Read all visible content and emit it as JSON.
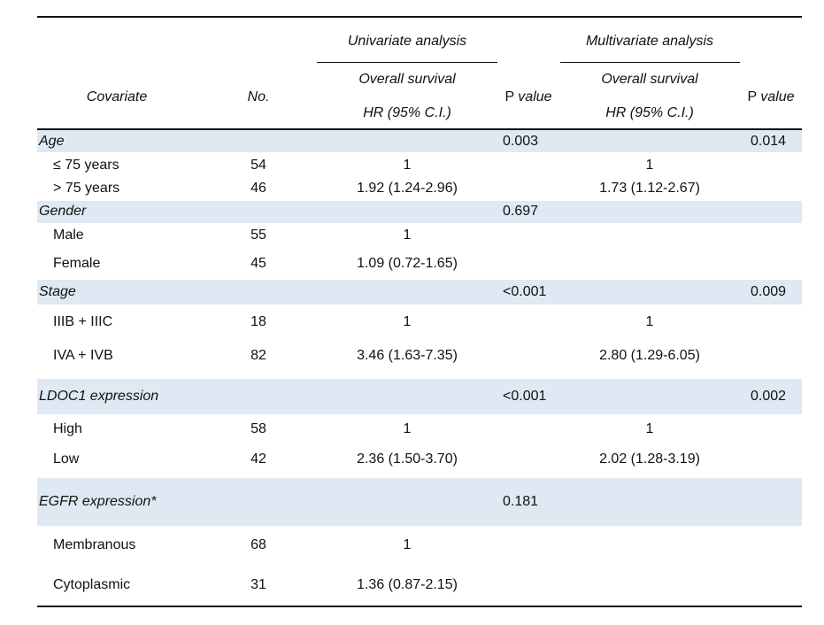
{
  "header": {
    "group_univariate": "Univariate analysis",
    "group_multivariate": "Multivariate analysis",
    "covariate": "Covariate",
    "no": "No.",
    "uni_os": "Overall survival",
    "uni_hr": "HR (95% C.I.)",
    "p_value_1": {
      "p": "P",
      "value": "value"
    },
    "multi_os": "Overall survival",
    "multi_hr": "HR (95% C.I.)",
    "p_value_2": {
      "p": "P",
      "value": "value"
    }
  },
  "groups": [
    {
      "label": "Age",
      "uni_p": "0.003",
      "multi_p": "0.014",
      "rows": [
        {
          "label": "≤ 75 years",
          "no": "54",
          "uni_hr": "1",
          "multi_hr": "1"
        },
        {
          "label": "> 75 years",
          "no": "46",
          "uni_hr": "1.92 (1.24-2.96)",
          "multi_hr": "1.73 (1.12-2.67)"
        }
      ]
    },
    {
      "label": "Gender",
      "uni_p": "0.697",
      "multi_p": "",
      "rows": [
        {
          "label": "Male",
          "no": "55",
          "uni_hr": "1",
          "multi_hr": ""
        },
        {
          "label": "Female",
          "no": "45",
          "uni_hr": "1.09 (0.72-1.65)",
          "multi_hr": ""
        }
      ]
    },
    {
      "label": "Stage",
      "uni_p": "<0.001",
      "multi_p": "0.009",
      "rows": [
        {
          "label": "IIIB + IIIC",
          "no": "18",
          "uni_hr": "1",
          "multi_hr": "1"
        },
        {
          "label": "IVA + IVB",
          "no": "82",
          "uni_hr": "3.46 (1.63-7.35)",
          "multi_hr": "2.80 (1.29-6.05)"
        }
      ]
    },
    {
      "label": "LDOC1 expression",
      "uni_p": "<0.001",
      "multi_p": "0.002",
      "rows": [
        {
          "label": "High",
          "no": "58",
          "uni_hr": "1",
          "multi_hr": "1"
        },
        {
          "label": "Low",
          "no": "42",
          "uni_hr": "2.36 (1.50-3.70)",
          "multi_hr": "2.02 (1.28-3.19)"
        }
      ]
    },
    {
      "label": "EGFR expression*",
      "uni_p": "0.181",
      "multi_p": "",
      "rows": [
        {
          "label": "Membranous",
          "no": "68",
          "uni_hr": "1",
          "multi_hr": ""
        },
        {
          "label": "Cytoplasmic",
          "no": "31",
          "uni_hr": "1.36 (0.87-2.15)",
          "multi_hr": ""
        }
      ]
    }
  ]
}
